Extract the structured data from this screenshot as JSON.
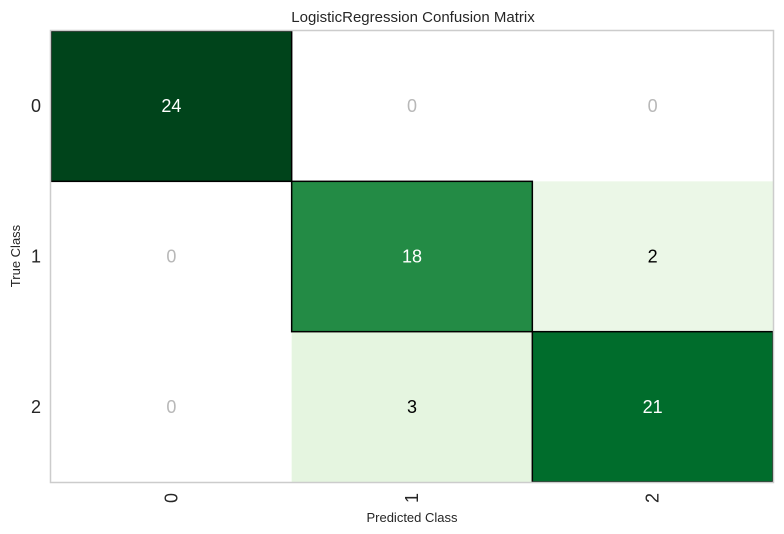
{
  "chart_data": {
    "type": "heatmap",
    "title": "LogisticRegression Confusion Matrix",
    "xlabel": "Predicted Class",
    "ylabel": "True Class",
    "x_categories": [
      "0",
      "1",
      "2"
    ],
    "y_categories": [
      "0",
      "1",
      "2"
    ],
    "matrix": [
      [
        24,
        0,
        0
      ],
      [
        0,
        18,
        2
      ],
      [
        0,
        3,
        21
      ]
    ],
    "colormap": "Greens",
    "zero_cell_color": "#ffffff",
    "zero_text_color": "#b8b8b8",
    "dark_text_color": "#ffffff",
    "light_text_color": "#000000",
    "frame_color": "#cccccc",
    "highlight_border_color": "#000000",
    "highlight_diagonal": true
  }
}
